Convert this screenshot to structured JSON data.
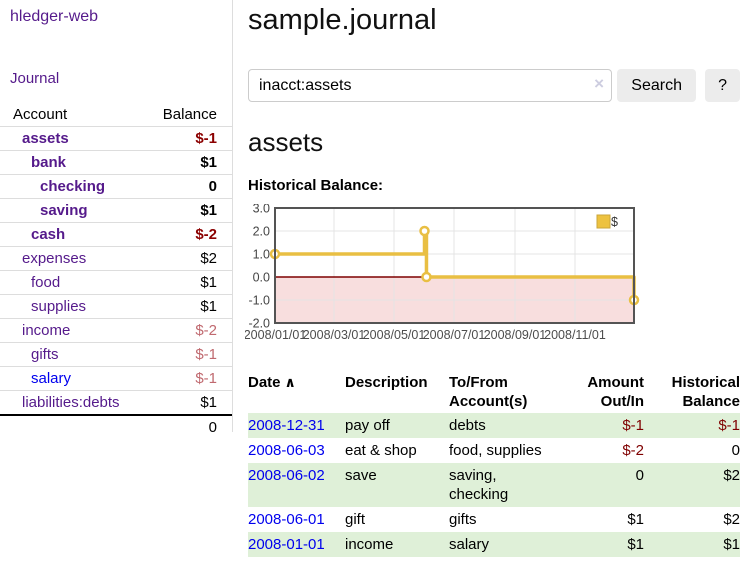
{
  "app": {
    "brand": "hledger-web",
    "nav_journal": "Journal"
  },
  "sidebar": {
    "header": {
      "account": "Account",
      "balance": "Balance"
    },
    "rows": [
      {
        "label": "assets",
        "balance": "$-1",
        "depth": 1,
        "bold": true,
        "link": "visited",
        "bal": "negstrong"
      },
      {
        "label": "bank",
        "balance": "$1",
        "depth": 2,
        "bold": true,
        "link": "visited",
        "bal": "plain"
      },
      {
        "label": "checking",
        "balance": "0",
        "depth": 3,
        "bold": true,
        "link": "visited",
        "bal": "plain"
      },
      {
        "label": "saving",
        "balance": "$1",
        "depth": 3,
        "bold": true,
        "link": "visited",
        "bal": "plain"
      },
      {
        "label": "cash",
        "balance": "$-2",
        "depth": 2,
        "bold": true,
        "link": "visited",
        "bal": "negstrong"
      },
      {
        "label": "expenses",
        "balance": "$2",
        "depth": 1,
        "bold": false,
        "link": "visited",
        "bal": "plain"
      },
      {
        "label": "food",
        "balance": "$1",
        "depth": 2,
        "bold": false,
        "link": "visited",
        "bal": "plain"
      },
      {
        "label": "supplies",
        "balance": "$1",
        "depth": 2,
        "bold": false,
        "link": "visited",
        "bal": "plain"
      },
      {
        "label": "income",
        "balance": "$-2",
        "depth": 1,
        "bold": false,
        "link": "visited",
        "bal": "negsoft"
      },
      {
        "label": "gifts",
        "balance": "$-1",
        "depth": 2,
        "bold": false,
        "link": "visited",
        "bal": "negsoft"
      },
      {
        "label": "salary",
        "balance": "$-1",
        "depth": 2,
        "bold": false,
        "link": "unvisited",
        "bal": "negsoft"
      },
      {
        "label": "liabilities:debts",
        "balance": "$1",
        "depth": 1,
        "bold": false,
        "link": "visited",
        "bal": "plain"
      }
    ],
    "total": "0"
  },
  "header": {
    "title": "sample.journal"
  },
  "search": {
    "value": "inacct:assets",
    "clear_icon": "×",
    "button": "Search",
    "help": "?"
  },
  "account_page": {
    "title": "assets",
    "chart_label": "Historical Balance:"
  },
  "chart_data": {
    "type": "line",
    "step": true,
    "title": "Historical Balance:",
    "series": [
      {
        "name": "$",
        "x": [
          "2008-01-01",
          "2008-06-01",
          "2008-06-03",
          "2008-12-31"
        ],
        "y": [
          1,
          2,
          0,
          -1
        ]
      }
    ],
    "x_range": [
      "2008-01-01",
      "2008-12-31"
    ],
    "xtick_positions": [
      "2008-01-01",
      "2008-03-01",
      "2008-05-01",
      "2008-07-01",
      "2008-09-01",
      "2008-11-01"
    ],
    "xtick_labels": [
      "2008/01/01",
      "2008/03/01",
      "2008/05/01",
      "2008/07/01",
      "2008/09/01",
      "2008/11/01"
    ],
    "ylim": [
      -2,
      3
    ],
    "yticks": [
      "3.0",
      "2.0",
      "1.0",
      "0.0",
      "-1.0",
      "-2.0"
    ],
    "grid": true,
    "legend": {
      "label": "$",
      "position": "top-right"
    },
    "colors": {
      "line": "#e9bf43",
      "marker_fill": "#ffffff",
      "negative_region": "#f8dede",
      "zero_line": "#7f0000",
      "grid": "#e4e4e4",
      "border": "#545454",
      "legend_square": "#edc240"
    }
  },
  "table": {
    "sort_caret": "∧",
    "columns": [
      {
        "label": "Date",
        "sorted": true
      },
      {
        "label": "Description"
      },
      {
        "label": "To/From Account(s)"
      },
      {
        "label": "Amount Out/In",
        "align": "right"
      },
      {
        "label": "Historical Balance",
        "align": "right"
      }
    ],
    "rows": [
      {
        "date": "2008-12-31",
        "description": "pay off",
        "accounts": "debts",
        "amount": "$-1",
        "amount_neg": true,
        "balance": "$-1",
        "balance_neg": true
      },
      {
        "date": "2008-06-03",
        "description": "eat & shop",
        "accounts": "food, supplies",
        "amount": "$-2",
        "amount_neg": true,
        "balance": "0",
        "balance_neg": false
      },
      {
        "date": "2008-06-02",
        "description": "save",
        "accounts": "saving, checking",
        "amount": "0",
        "amount_neg": false,
        "balance": "$2",
        "balance_neg": false
      },
      {
        "date": "2008-06-01",
        "description": "gift",
        "accounts": "gifts",
        "amount": "$1",
        "amount_neg": false,
        "balance": "$2",
        "balance_neg": false
      },
      {
        "date": "2008-01-01",
        "description": "income",
        "accounts": "salary",
        "amount": "$1",
        "amount_neg": false,
        "balance": "$1",
        "balance_neg": false
      }
    ]
  }
}
